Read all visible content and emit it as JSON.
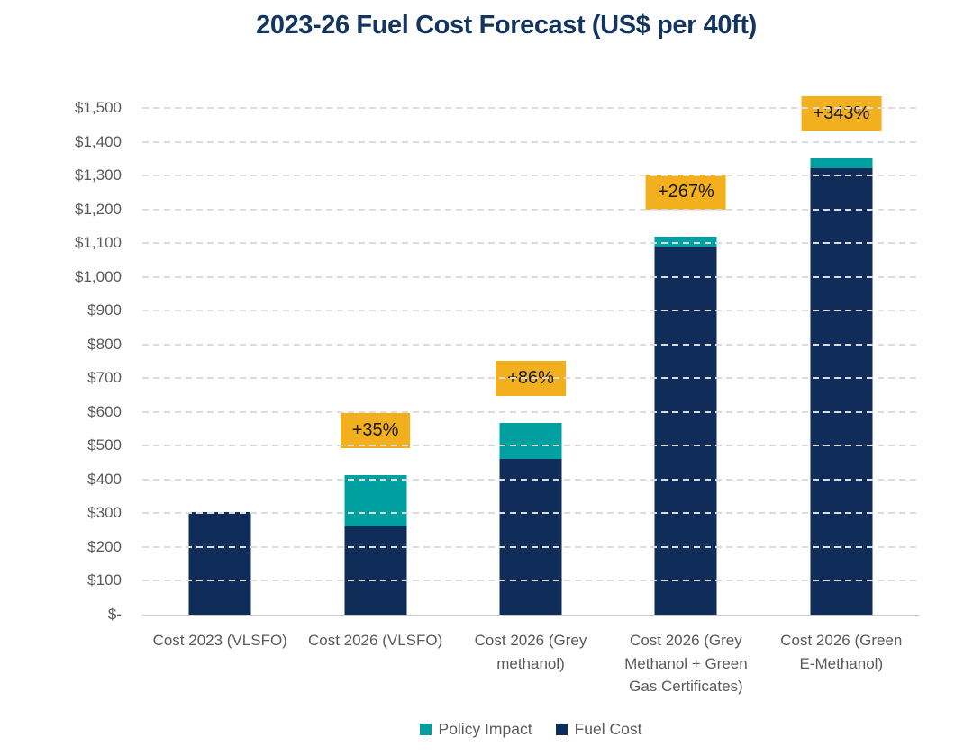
{
  "title": "2023-26 Fuel Cost Forecast (US$ per 40ft)",
  "colors": {
    "navy": "#102D5A",
    "teal": "#00A0A0",
    "badge_bg": "#F2AF1E",
    "badge_text": "#1A1A1A",
    "axis_text": "#595959",
    "gridline": "#DCDCDC",
    "axis_line": "#C8C8C8",
    "title_text": "#14355F"
  },
  "chart_data": {
    "type": "bar",
    "stacked": true,
    "title": "2023-26 Fuel Cost Forecast (US$ per 40ft)",
    "categories": [
      "Cost 2023 (VLSFO)",
      "Cost 2026 (VLSFO)",
      "Cost 2026 (Grey\nmethanol)",
      "Cost 2026 (Grey\nMethanol + Green\nGas Certificates)",
      "Cost 2026 (Green\nE-Methanol)"
    ],
    "series": [
      {
        "name": "Fuel Cost",
        "color": "#102D5A",
        "values": [
          305,
          262,
          462,
          1090,
          1322
        ]
      },
      {
        "name": "Policy Impact",
        "color": "#00A0A0",
        "values": [
          0,
          150,
          105,
          30,
          30
        ]
      }
    ],
    "totals": [
      305,
      412,
      567,
      1120,
      1352
    ],
    "annotations": [
      null,
      "+35%",
      "+86%",
      "+267%",
      "+343%"
    ],
    "xlabel": "",
    "ylabel": "",
    "ylim": [
      0,
      1500
    ],
    "ytick_step": 100,
    "ytick_labels": [
      "$-",
      "$100",
      "$200",
      "$300",
      "$400",
      "$500",
      "$600",
      "$700",
      "$800",
      "$900",
      "$1,000",
      "$1,100",
      "$1,200",
      "$1,300",
      "$1,400",
      "$1,500"
    ],
    "grid": "horizontal-dashed",
    "legend_position": "bottom"
  },
  "legend": {
    "items": [
      {
        "label": "Policy Impact",
        "color": "#00A0A0"
      },
      {
        "label": "Fuel Cost",
        "color": "#102D5A"
      }
    ]
  }
}
